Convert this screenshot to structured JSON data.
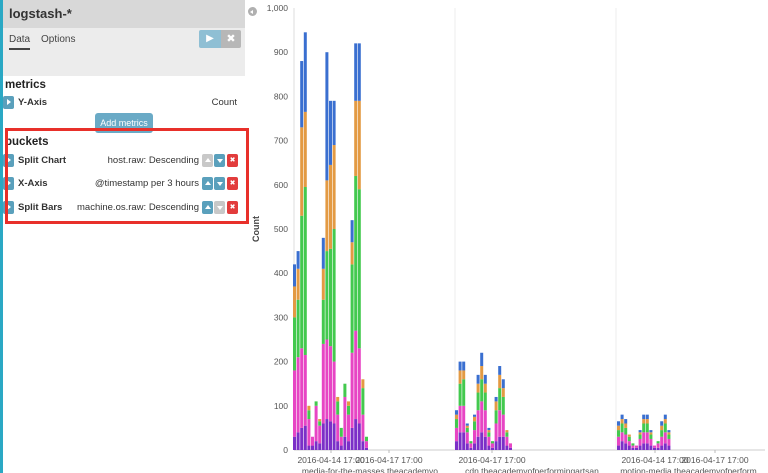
{
  "index_pattern": "logstash-*",
  "tabs": [
    {
      "label": "Data",
      "active": true
    },
    {
      "label": "Options",
      "active": false
    }
  ],
  "toolbar": {
    "run_icon": "play-icon",
    "reset_icon": "close-icon"
  },
  "metrics": {
    "heading": "metrics",
    "items": [
      {
        "label": "Y-Axis",
        "description": "Count"
      }
    ],
    "add_label": "Add metrics"
  },
  "buckets": {
    "heading": "buckets",
    "items": [
      {
        "label": "Split Chart",
        "description": "host.raw: Descending"
      },
      {
        "label": "X-Axis",
        "description": "@timestamp per 3 hours"
      },
      {
        "label": "Split Bars",
        "description": "machine.os.raw: Descending"
      }
    ]
  },
  "colors": {
    "accent": "#2aa8c4",
    "highlight": "#e8302a",
    "series": [
      "#7b2fc7",
      "#e745c4",
      "#43c94e",
      "#e39a43",
      "#3a6fd0"
    ]
  },
  "chart_data": {
    "type": "bar",
    "stacked": true,
    "ylabel": "Count",
    "ylim": [
      0,
      1000
    ],
    "yticks": [
      0,
      100,
      200,
      300,
      400,
      500,
      600,
      700,
      800,
      900,
      "1,000"
    ],
    "grid": false,
    "panels": [
      {
        "x_tick": "2016-04-14 17:00",
        "x_tick_2": "2016-04-17 17:00",
        "split_label": "media-for-the-masses.theacademyo...",
        "bars": [
          [
            30,
            150,
            120,
            70,
            50
          ],
          [
            40,
            170,
            130,
            70,
            40
          ],
          [
            50,
            180,
            300,
            200,
            150
          ],
          [
            55,
            160,
            380,
            170,
            180
          ],
          [
            10,
            60,
            20,
            10,
            0
          ],
          [
            10,
            20,
            0,
            0,
            0
          ],
          [
            20,
            80,
            10,
            0,
            0
          ],
          [
            15,
            40,
            10,
            5,
            0
          ],
          [
            60,
            180,
            100,
            70,
            70
          ],
          [
            70,
            180,
            200,
            160,
            290
          ],
          [
            65,
            170,
            220,
            190,
            145
          ],
          [
            60,
            140,
            300,
            190,
            100
          ],
          [
            20,
            60,
            30,
            10,
            0
          ],
          [
            10,
            20,
            20,
            0,
            0
          ],
          [
            30,
            90,
            30,
            0,
            0
          ],
          [
            20,
            60,
            20,
            10,
            0
          ],
          [
            50,
            170,
            200,
            50,
            50
          ],
          [
            70,
            200,
            350,
            170,
            130
          ],
          [
            60,
            170,
            360,
            200,
            130
          ],
          [
            20,
            60,
            60,
            20,
            0
          ],
          [
            5,
            15,
            10,
            0,
            0
          ]
        ]
      },
      {
        "x_tick": "2016-04-17 17:00",
        "split_label": "cdn.theacademyofperformingartsan...",
        "bars": [
          [
            20,
            30,
            20,
            10,
            10
          ],
          [
            40,
            60,
            50,
            30,
            20
          ],
          [
            40,
            60,
            60,
            20,
            20
          ],
          [
            15,
            25,
            10,
            5,
            5
          ],
          [
            5,
            10,
            5,
            0,
            0
          ],
          [
            15,
            30,
            20,
            10,
            5
          ],
          [
            30,
            60,
            40,
            20,
            20
          ],
          [
            40,
            70,
            50,
            30,
            30
          ],
          [
            30,
            60,
            40,
            20,
            20
          ],
          [
            10,
            20,
            10,
            5,
            5
          ],
          [
            5,
            10,
            5,
            0,
            0
          ],
          [
            20,
            40,
            30,
            20,
            10
          ],
          [
            30,
            60,
            50,
            30,
            20
          ],
          [
            30,
            50,
            40,
            20,
            20
          ],
          [
            10,
            20,
            10,
            5,
            0
          ],
          [
            5,
            10,
            0,
            0,
            0
          ]
        ]
      },
      {
        "x_tick": "2016-04-14 17:00",
        "x_tick_2": "2016-04-17 17:00",
        "split_label": "motion-media.theacademyofperform...",
        "bars": [
          [
            10,
            20,
            15,
            10,
            10
          ],
          [
            20,
            20,
            20,
            10,
            10
          ],
          [
            15,
            20,
            15,
            10,
            10
          ],
          [
            10,
            10,
            10,
            5,
            0
          ],
          [
            5,
            5,
            5,
            0,
            0
          ],
          [
            5,
            5,
            0,
            0,
            0
          ],
          [
            10,
            15,
            10,
            5,
            5
          ],
          [
            15,
            25,
            20,
            10,
            10
          ],
          [
            15,
            25,
            20,
            10,
            10
          ],
          [
            10,
            15,
            10,
            5,
            5
          ],
          [
            5,
            5,
            0,
            0,
            0
          ],
          [
            5,
            10,
            5,
            0,
            0
          ],
          [
            10,
            20,
            15,
            10,
            10
          ],
          [
            15,
            25,
            20,
            10,
            10
          ],
          [
            10,
            15,
            10,
            5,
            5
          ]
        ]
      }
    ]
  }
}
